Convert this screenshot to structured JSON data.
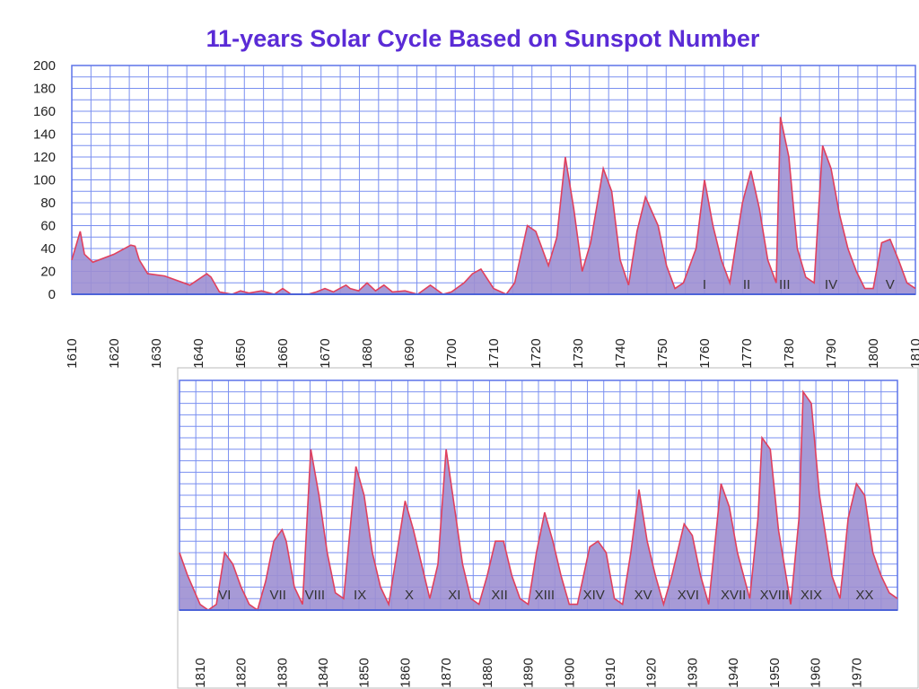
{
  "title": "11-years Solar Cycle Based on Sunspot Number",
  "chart_data": [
    {
      "type": "area",
      "x_range": [
        1610,
        1810
      ],
      "ylim": [
        0,
        200
      ],
      "yticks": [
        "0",
        "20",
        "40",
        "60",
        "80",
        "100",
        "120",
        "140",
        "160",
        "180",
        "200"
      ],
      "xticks": [
        "1610",
        "1620",
        "1630",
        "1640",
        "1650",
        "1660",
        "1670",
        "1680",
        "1690",
        "1700",
        "1710",
        "1720",
        "1730",
        "1740",
        "1750",
        "1760",
        "1770",
        "1780",
        "1790",
        "1800",
        "1810"
      ],
      "grid": true,
      "x": [
        1610,
        1612,
        1613,
        1615,
        1620,
        1624,
        1625,
        1626,
        1628,
        1632,
        1638,
        1642,
        1643,
        1645,
        1648,
        1650,
        1652,
        1655,
        1658,
        1660,
        1662,
        1666,
        1668,
        1670,
        1672,
        1675,
        1676,
        1678,
        1680,
        1682,
        1684,
        1686,
        1689,
        1692,
        1695,
        1698,
        1700,
        1703,
        1705,
        1707,
        1710,
        1713,
        1715,
        1718,
        1720,
        1723,
        1725,
        1727,
        1729,
        1731,
        1733,
        1736,
        1738,
        1740,
        1742,
        1744,
        1746,
        1749,
        1751,
        1753,
        1755,
        1758,
        1760,
        1762,
        1764,
        1766,
        1769,
        1771,
        1773,
        1775,
        1777,
        1778,
        1780,
        1782,
        1784,
        1786,
        1788,
        1790,
        1792,
        1794,
        1796,
        1798,
        1800,
        1802,
        1804,
        1806,
        1808,
        1810
      ],
      "y": [
        30,
        55,
        35,
        28,
        35,
        43,
        42,
        30,
        18,
        16,
        8,
        18,
        15,
        2,
        0,
        3,
        1,
        3,
        0,
        5,
        0,
        0,
        2,
        5,
        2,
        8,
        5,
        3,
        10,
        3,
        8,
        2,
        3,
        0,
        8,
        0,
        2,
        10,
        18,
        22,
        5,
        0,
        10,
        60,
        55,
        25,
        50,
        120,
        75,
        20,
        45,
        110,
        90,
        30,
        8,
        55,
        85,
        60,
        25,
        5,
        10,
        40,
        100,
        60,
        30,
        10,
        80,
        108,
        75,
        30,
        10,
        155,
        120,
        40,
        15,
        10,
        130,
        110,
        70,
        40,
        20,
        5,
        5,
        45,
        48,
        30,
        10,
        5
      ],
      "annotations": [
        "I",
        "II",
        "III",
        "IV",
        "V"
      ],
      "annotation_x": [
        1760,
        1770,
        1779,
        1790,
        1804
      ]
    },
    {
      "type": "area",
      "x_range": [
        1805,
        1980
      ],
      "ylim": [
        0,
        200
      ],
      "xticks": [
        "1810",
        "1820",
        "1830",
        "1840",
        "1850",
        "1860",
        "1870",
        "1880",
        "1890",
        "1900",
        "1910",
        "1920",
        "1930",
        "1940",
        "1950",
        "1960",
        "1970"
      ],
      "grid": true,
      "x": [
        1805,
        1807,
        1810,
        1812,
        1814,
        1816,
        1818,
        1820,
        1822,
        1824,
        1826,
        1828,
        1830,
        1831,
        1833,
        1835,
        1837,
        1839,
        1841,
        1843,
        1845,
        1848,
        1850,
        1852,
        1854,
        1856,
        1858,
        1860,
        1862,
        1864,
        1866,
        1868,
        1870,
        1872,
        1874,
        1876,
        1878,
        1880,
        1882,
        1884,
        1886,
        1888,
        1890,
        1892,
        1894,
        1896,
        1898,
        1900,
        1902,
        1905,
        1907,
        1909,
        1911,
        1913,
        1915,
        1917,
        1919,
        1921,
        1923,
        1925,
        1928,
        1930,
        1932,
        1934,
        1937,
        1939,
        1941,
        1944,
        1946,
        1947,
        1949,
        1951,
        1954,
        1956,
        1957,
        1959,
        1961,
        1964,
        1966,
        1968,
        1970,
        1972,
        1974,
        1976,
        1978,
        1980
      ],
      "y": [
        50,
        30,
        5,
        0,
        5,
        50,
        40,
        20,
        5,
        0,
        25,
        60,
        70,
        60,
        20,
        5,
        140,
        100,
        50,
        15,
        10,
        125,
        100,
        50,
        20,
        5,
        50,
        95,
        70,
        40,
        10,
        40,
        140,
        90,
        40,
        10,
        5,
        30,
        60,
        60,
        30,
        10,
        5,
        50,
        85,
        60,
        30,
        5,
        5,
        55,
        60,
        50,
        10,
        5,
        50,
        105,
        60,
        30,
        5,
        30,
        75,
        65,
        30,
        5,
        110,
        90,
        50,
        10,
        80,
        150,
        140,
        70,
        5,
        80,
        190,
        180,
        100,
        30,
        10,
        80,
        110,
        100,
        50,
        30,
        15,
        10
      ],
      "annotations": [
        "VI",
        "VII",
        "VIII",
        "IX",
        "X",
        "XI",
        "XII",
        "XIII",
        "XIV",
        "XV",
        "XVI",
        "XVII",
        "XVIII",
        "XIX",
        "XX"
      ],
      "annotation_x": [
        1816,
        1829,
        1838,
        1849,
        1861,
        1872,
        1883,
        1894,
        1906,
        1918,
        1929,
        1940,
        1950,
        1959,
        1972
      ]
    }
  ]
}
